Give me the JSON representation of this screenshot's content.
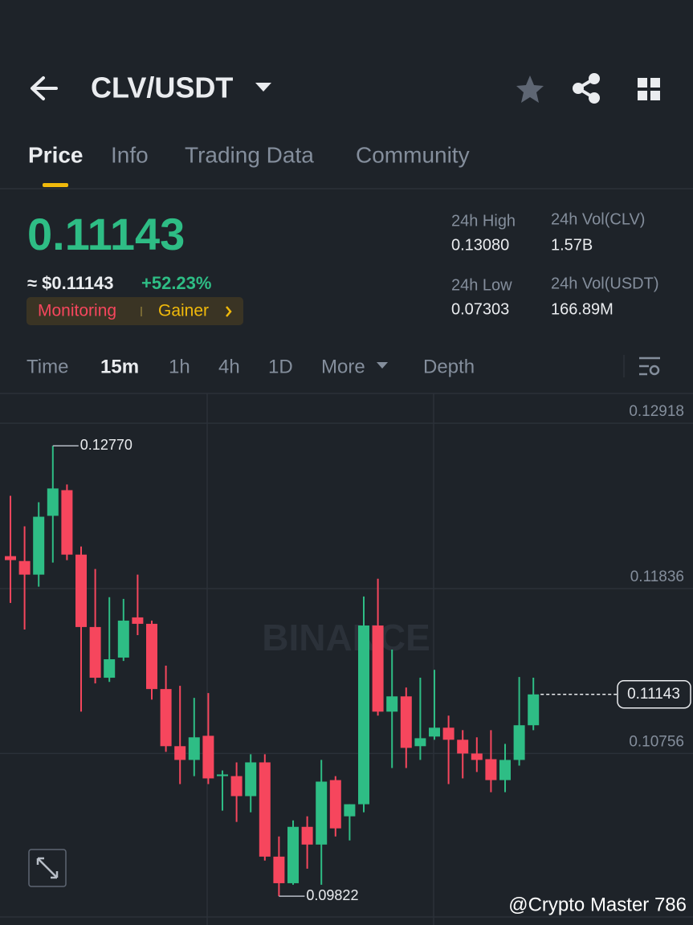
{
  "header": {
    "pair": "CLV/USDT"
  },
  "tabs": [
    "Price",
    "Info",
    "Trading Data",
    "Community"
  ],
  "ticker": {
    "price": "0.11143",
    "usd_price": "≈ $0.11143",
    "change": "+52.23%",
    "badges": [
      "Monitoring",
      "Gainer"
    ],
    "stats": [
      {
        "label": "24h High",
        "value": "0.13080"
      },
      {
        "label": "24h Vol(CLV)",
        "value": "1.57B"
      },
      {
        "label": "24h Low",
        "value": "0.07303"
      },
      {
        "label": "24h Vol(USDT)",
        "value": "166.89M"
      }
    ]
  },
  "intervals": [
    "Time",
    "15m",
    "1h",
    "4h",
    "1D",
    "More",
    "Depth"
  ],
  "chart_data": {
    "type": "candlestick",
    "open": [
      0.12048,
      0.12016,
      0.11927,
      0.12312,
      0.1248,
      0.12058,
      0.11584,
      0.11252,
      0.11384,
      0.11647,
      0.11605,
      0.11178,
      0.10804,
      0.10714,
      0.10872,
      0.10608,
      0.10608,
      0.10477,
      0.10698,
      0.10081,
      0.09907,
      0.10276,
      0.1016,
      0.10582,
      0.10345,
      0.10424,
      0.11594,
      0.1103,
      0.1113,
      0.10804,
      0.10867,
      0.10925,
      0.10846,
      0.10756,
      0.10719,
      0.10582,
      0.10714,
      0.10941
    ],
    "high": [
      0.12443,
      0.12243,
      0.12401,
      0.1277,
      0.12517,
      0.12111,
      0.11964,
      0.11779,
      0.11768,
      0.11927,
      0.11626,
      0.11331,
      0.11199,
      0.1112,
      0.11152,
      0.10645,
      0.10698,
      0.10751,
      0.10751,
      0.10213,
      0.10318,
      0.10345,
      0.10714,
      0.10608,
      0.10424,
      0.11784,
      0.119,
      0.11436,
      0.11188,
      0.11252,
      0.11304,
      0.11004,
      0.10909,
      0.10862,
      0.10909,
      0.10819,
      0.11257,
      0.11252
    ],
    "low": [
      0.11742,
      0.11568,
      0.11848,
      0.12006,
      0.12022,
      0.1103,
      0.11215,
      0.11225,
      0.11362,
      0.11531,
      0.11109,
      0.10767,
      0.10556,
      0.10608,
      0.10556,
      0.10382,
      0.10308,
      0.10371,
      0.10055,
      0.09822,
      0.09897,
      0.10002,
      0.09897,
      0.10213,
      0.10187,
      0.10371,
      0.11004,
      0.10661,
      0.10661,
      0.10714,
      0.10846,
      0.10556,
      0.10593,
      0.10635,
      0.10503,
      0.10503,
      0.10677,
      0.10909
    ],
    "close": [
      0.12022,
      0.11927,
      0.12306,
      0.12491,
      0.12058,
      0.11584,
      0.11252,
      0.11373,
      0.11626,
      0.11605,
      0.11178,
      0.10804,
      0.10714,
      0.10862,
      0.10593,
      0.10619,
      0.10477,
      0.10698,
      0.10081,
      0.09907,
      0.10276,
      0.1016,
      0.10572,
      0.10266,
      0.10424,
      0.11594,
      0.1103,
      0.1113,
      0.10793,
      0.10856,
      0.10925,
      0.10846,
      0.10756,
      0.10714,
      0.10582,
      0.10714,
      0.10941,
      0.11143
    ],
    "up_color": "#2ebd85",
    "down_color": "#f6465d",
    "ylim": [
      0.09686,
      0.13113
    ],
    "yticks": [
      0.12918,
      0.11836,
      0.10756
    ],
    "grid": true,
    "last_price": 0.11143,
    "max_marker": {
      "value": 0.1277,
      "label": "0.12770"
    },
    "min_marker": 0.09822
  },
  "watermark": "BINANCE",
  "credit": "@Crypto Master 786"
}
